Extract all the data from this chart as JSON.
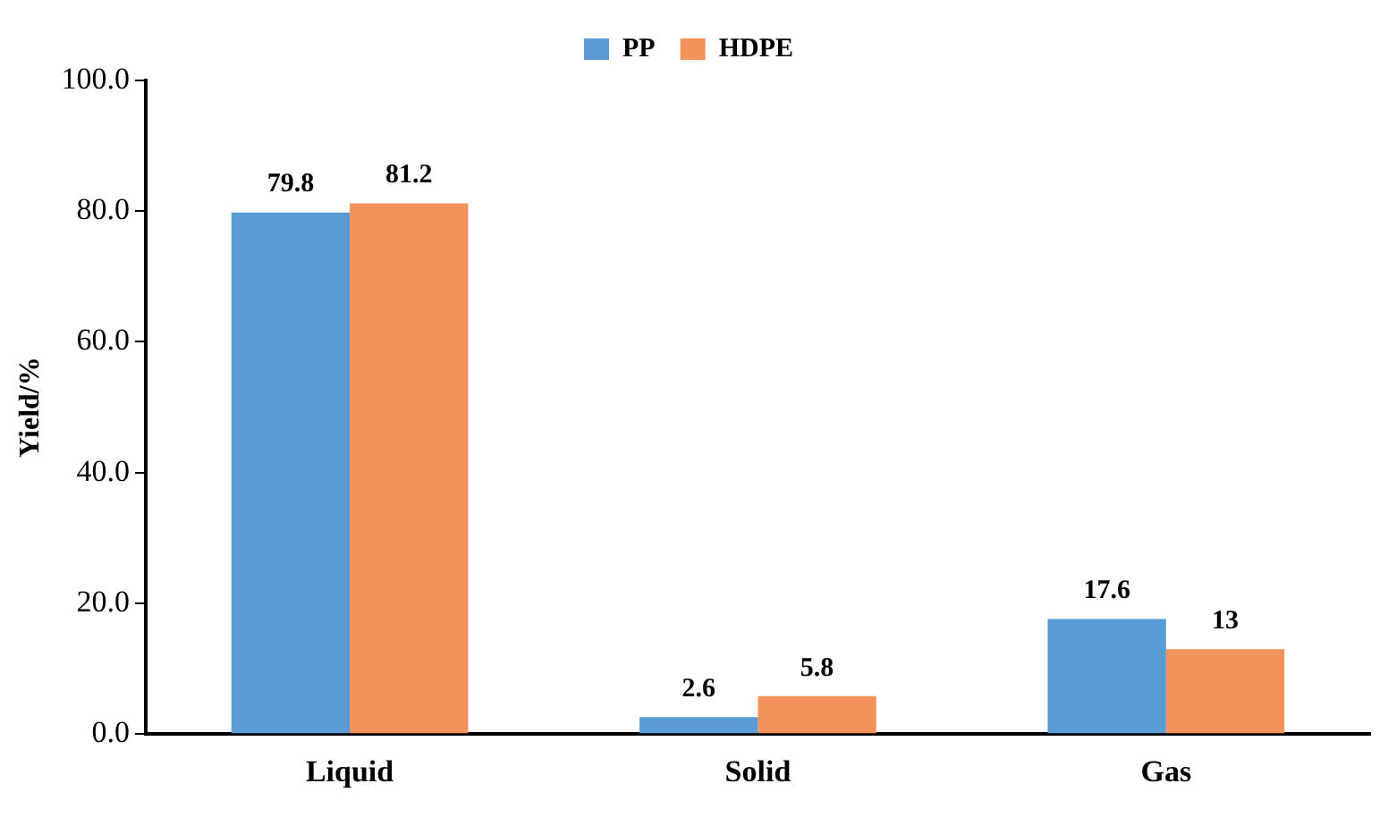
{
  "chart_data": {
    "type": "bar",
    "ylabel": "Yield/%",
    "categories": [
      "Liquid",
      "Solid",
      "Gas"
    ],
    "series": [
      {
        "name": "PP",
        "color": "#5b9bd5",
        "values": [
          79.8,
          2.6,
          17.6
        ]
      },
      {
        "name": "HDPE",
        "color": "#f4925c",
        "values": [
          81.2,
          5.8,
          13
        ]
      }
    ],
    "ylim": [
      0,
      100
    ],
    "yticks": [
      {
        "value": 0,
        "label": "0.0"
      },
      {
        "value": 20,
        "label": "20.0"
      },
      {
        "value": 40,
        "label": "40.0"
      },
      {
        "value": 60,
        "label": "60.0"
      },
      {
        "value": 80,
        "label": "80.0"
      },
      {
        "value": 100,
        "label": "100.0"
      }
    ],
    "grid": false,
    "legend": "top",
    "data_labels": true
  }
}
